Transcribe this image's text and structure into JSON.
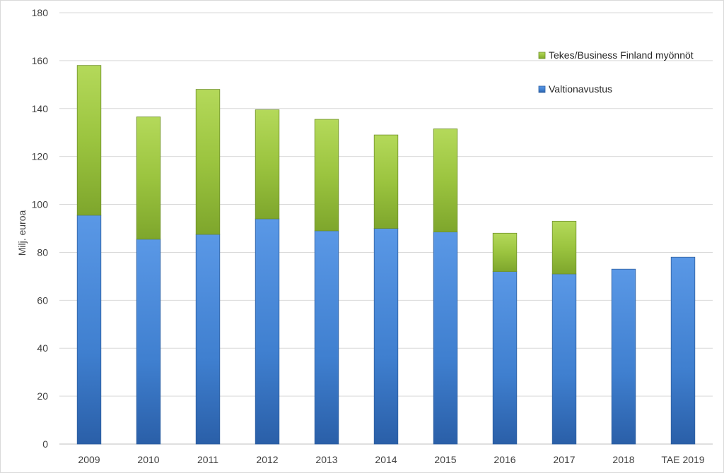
{
  "chart_data": {
    "type": "bar",
    "stacked": true,
    "categories": [
      "2009",
      "2010",
      "2011",
      "2012",
      "2013",
      "2014",
      "2015",
      "2016",
      "2017",
      "2018",
      "TAE 2019"
    ],
    "series": [
      {
        "name": "Valtionavustus",
        "color": "#4a86d4",
        "values": [
          95.5,
          85.5,
          87.5,
          94,
          89,
          90,
          88.5,
          72,
          71,
          73,
          78
        ]
      },
      {
        "name": "Tekes/Business Finland myönnöt",
        "color": "#9bc43f",
        "values": [
          62.5,
          51,
          60.5,
          45.5,
          46.5,
          39,
          43,
          16,
          22,
          0,
          0
        ]
      }
    ],
    "title": "",
    "xlabel": "",
    "ylabel": "Milj. euroa",
    "ylim": [
      0,
      180
    ],
    "yticks": [
      0,
      20,
      40,
      60,
      80,
      100,
      120,
      140,
      160,
      180
    ],
    "grid": true,
    "legend_position": "top-right",
    "legend_order": [
      "Tekes/Business Finland myönnöt",
      "Valtionavustus"
    ]
  }
}
